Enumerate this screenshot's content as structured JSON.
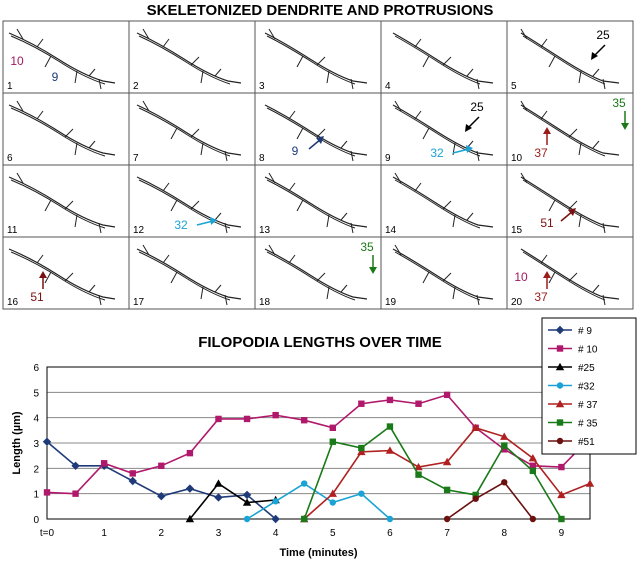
{
  "panels_title": "SKELETONIZED DENDRITE AND PROTRUSIONS",
  "panels": [
    {
      "num": "1",
      "ann": [
        {
          "label": "10",
          "color": "#a0195f",
          "side": "left"
        },
        {
          "label": "9",
          "color": "#1e3a78",
          "side": "bottom"
        }
      ]
    },
    {
      "num": "2",
      "ann": []
    },
    {
      "num": "3",
      "ann": []
    },
    {
      "num": "4",
      "ann": []
    },
    {
      "num": "5",
      "ann": [
        {
          "label": "25",
          "color": "#000000",
          "arrow": "dl"
        }
      ]
    },
    {
      "num": "6",
      "ann": []
    },
    {
      "num": "7",
      "ann": []
    },
    {
      "num": "8",
      "ann": [
        {
          "label": "9",
          "color": "#1e3a78",
          "arrow": "ur"
        }
      ]
    },
    {
      "num": "9",
      "ann": [
        {
          "label": "25",
          "color": "#000000",
          "arrow": "dl"
        },
        {
          "label": "32",
          "color": "#1aa3d4",
          "arrow": "r"
        }
      ]
    },
    {
      "num": "10",
      "ann": [
        {
          "label": "37",
          "color": "#9b1b1b",
          "arrow": "up"
        },
        {
          "label": "35",
          "color": "#1a7a1a",
          "arrow": "down"
        }
      ]
    },
    {
      "num": "11",
      "ann": []
    },
    {
      "num": "12",
      "ann": [
        {
          "label": "32",
          "color": "#1aa3d4",
          "arrow": "r"
        }
      ]
    },
    {
      "num": "13",
      "ann": []
    },
    {
      "num": "14",
      "ann": []
    },
    {
      "num": "15",
      "ann": [
        {
          "label": "51",
          "color": "#7a1010",
          "arrow": "ur"
        }
      ]
    },
    {
      "num": "16",
      "ann": [
        {
          "label": "51",
          "color": "#7a1010",
          "arrow": "up"
        }
      ]
    },
    {
      "num": "17",
      "ann": []
    },
    {
      "num": "18",
      "ann": [
        {
          "label": "35",
          "color": "#1a7a1a",
          "arrow": "down"
        }
      ]
    },
    {
      "num": "19",
      "ann": []
    },
    {
      "num": "20",
      "ann": [
        {
          "label": "10",
          "color": "#a0195f",
          "side": "left"
        },
        {
          "label": "37",
          "color": "#9b1b1b",
          "arrow": "up"
        }
      ]
    }
  ],
  "chart_data": {
    "type": "line",
    "title": "FILOPODIA LENGTHS OVER TIME",
    "xlabel": "Time (minutes)",
    "ylabel": "Length (µm)",
    "xlim": [
      0,
      9.5
    ],
    "ylim": [
      0,
      6
    ],
    "x_ticks": [
      {
        "v": 0,
        "label": "t=0"
      },
      {
        "v": 1,
        "label": "1"
      },
      {
        "v": 2,
        "label": "2"
      },
      {
        "v": 3,
        "label": "3"
      },
      {
        "v": 4,
        "label": "4"
      },
      {
        "v": 5,
        "label": "5"
      },
      {
        "v": 6,
        "label": "6"
      },
      {
        "v": 7,
        "label": "7"
      },
      {
        "v": 8,
        "label": "8"
      },
      {
        "v": 9,
        "label": "9"
      }
    ],
    "y_ticks": [
      0,
      1,
      2,
      3,
      4,
      5,
      6
    ],
    "grid": "horizontal",
    "legend": "top-right",
    "series": [
      {
        "name": "# 9",
        "color": "#1e3a78",
        "marker": "diamond",
        "x": [
          0,
          0.5,
          1,
          1.5,
          2,
          2.5,
          3,
          3.5,
          4
        ],
        "y": [
          3.05,
          2.1,
          2.1,
          1.5,
          0.9,
          1.2,
          0.85,
          0.95,
          0
        ]
      },
      {
        "name": "# 10",
        "color": "#b0186c",
        "marker": "square",
        "x": [
          0,
          0.5,
          1,
          1.5,
          2,
          2.5,
          3,
          3.5,
          4,
          4.5,
          5,
          5.5,
          6,
          6.5,
          7,
          7.5,
          8,
          8.5,
          9,
          9.5
        ],
        "y": [
          1.05,
          1.0,
          2.2,
          1.8,
          2.1,
          2.6,
          3.95,
          3.95,
          4.1,
          3.9,
          3.6,
          4.55,
          4.7,
          4.55,
          4.9,
          3.6,
          2.75,
          2.1,
          2.05,
          3.2
        ]
      },
      {
        "name": "#25",
        "color": "#000000",
        "marker": "triangle",
        "x": [
          2.5,
          3,
          3.5,
          4
        ],
        "y": [
          0,
          1.4,
          0.65,
          0.75
        ]
      },
      {
        "name": "#32",
        "color": "#1aa3d4",
        "marker": "circle",
        "x": [
          3.5,
          4,
          4.5,
          5,
          5.5,
          6
        ],
        "y": [
          0,
          0.7,
          1.4,
          0.65,
          1.0,
          0
        ]
      },
      {
        "name": "# 37",
        "color": "#b02020",
        "marker": "triangle",
        "x": [
          4.5,
          5,
          5.5,
          6,
          6.5,
          7,
          7.5,
          8,
          8.5,
          9,
          9.5
        ],
        "y": [
          0,
          1.0,
          2.65,
          2.7,
          2.05,
          2.25,
          3.6,
          3.25,
          2.4,
          0.95,
          1.4
        ]
      },
      {
        "name": "# 35",
        "color": "#1a7a1a",
        "marker": "square",
        "x": [
          4.5,
          5,
          5.5,
          6,
          6.5,
          7,
          7.5,
          8,
          8.5,
          9
        ],
        "y": [
          0,
          3.05,
          2.8,
          3.65,
          1.75,
          1.15,
          0.95,
          2.9,
          1.9,
          0
        ]
      },
      {
        "name": "#51",
        "color": "#6a1010",
        "marker": "circle",
        "x": [
          7,
          7.5,
          8,
          8.5
        ],
        "y": [
          0,
          0.8,
          1.45,
          0
        ]
      }
    ]
  }
}
